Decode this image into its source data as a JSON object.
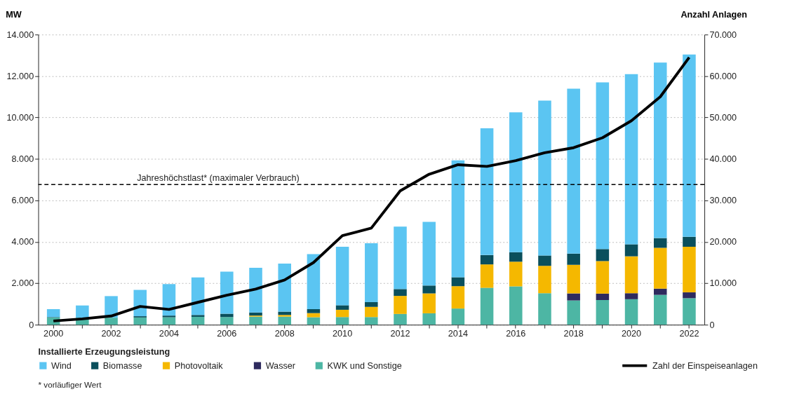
{
  "chart_data": {
    "type": "bar",
    "stacked": true,
    "categories": [
      "2000",
      null,
      "2002",
      null,
      "2004",
      null,
      "2006",
      null,
      "2008",
      null,
      "2010",
      null,
      "2012",
      null,
      "2014",
      null,
      "2016",
      null,
      "2018",
      null,
      "2020",
      null,
      "2022"
    ],
    "ylabel": "MW",
    "y2label": "Anzahl Anlagen",
    "legend_title": "Installierte Erzeugungsleistung",
    "series": [
      {
        "name": "KWK und Sonstige",
        "color": "#4db6a4",
        "values": [
          350,
          340,
          340,
          350,
          360,
          380,
          370,
          390,
          390,
          360,
          370,
          370,
          520,
          550,
          780,
          1780,
          1850,
          1520,
          1170,
          1190,
          1230,
          1440,
          1280
        ]
      },
      {
        "name": "Wasser",
        "color": "#2e2a5e",
        "values": [
          0,
          0,
          0,
          0,
          0,
          0,
          0,
          0,
          0,
          0,
          0,
          0,
          0,
          0,
          0,
          0,
          0,
          0,
          340,
          310,
          290,
          300,
          280
        ]
      },
      {
        "name": "Photovoltaik",
        "color": "#f5b800",
        "values": [
          0,
          0,
          0,
          0,
          0,
          0,
          0,
          50,
          80,
          200,
          350,
          490,
          870,
          960,
          1080,
          1130,
          1190,
          1320,
          1380,
          1570,
          1780,
          1970,
          2200
        ]
      },
      {
        "name": "Biomasse",
        "color": "#0a4f5c",
        "values": [
          20,
          null,
          null,
          60,
          80,
          90,
          160,
          150,
          160,
          190,
          220,
          230,
          330,
          380,
          430,
          450,
          460,
          500,
          540,
          580,
          580,
          470,
          480
        ]
      },
      {
        "name": "Wind",
        "color": "#5bc5f2",
        "values": [
          380,
          590,
          1040,
          1270,
          1520,
          1810,
          2030,
          2160,
          2320,
          2660,
          2820,
          2840,
          3010,
          3070,
          5640,
          6120,
          6750,
          7470,
          7960,
          8040,
          8210,
          8470,
          8800
        ]
      },
      {
        "name": "Zahl der Einspeiseanlagen",
        "type": "line",
        "axis": "y2",
        "color": "#000000",
        "values": [
          900,
          1400,
          2100,
          4400,
          3700,
          5400,
          7100,
          8600,
          10800,
          15000,
          21500,
          23300,
          32300,
          36300,
          38600,
          38200,
          39600,
          41500,
          42700,
          45100,
          49200,
          55000,
          64500
        ]
      }
    ],
    "ylim": [
      0,
      14000
    ],
    "yticks": [
      0,
      {
        "value": 2000,
        "label": "2.000"
      },
      {
        "value": 4000,
        "label": "4.000"
      },
      {
        "value": 6000,
        "label": "6.000"
      },
      {
        "value": 8000,
        "label": "8.000"
      },
      {
        "value": 10000,
        "label": "10.000"
      },
      {
        "value": 12000,
        "label": "12.000"
      },
      {
        "value": 14000,
        "label": "14.000"
      }
    ],
    "y2lim": [
      0,
      70000
    ],
    "y2ticks": [
      0,
      {
        "value": 10000,
        "label": "10.000"
      },
      {
        "value": 20000,
        "label": "20.000"
      },
      {
        "value": 30000,
        "label": "30.000"
      },
      {
        "value": 40000,
        "label": "40.000"
      },
      {
        "value": 50000,
        "label": "50.000"
      },
      {
        "value": 60000,
        "label": "60.000"
      },
      {
        "value": 70000,
        "label": "70.000"
      }
    ],
    "ref_lines": [
      {
        "axis": "y",
        "value": 6760,
        "label": "Jahreshöchstlast* (maximaler Verbrauch)",
        "color": "#000000",
        "line_style": "dashed"
      }
    ],
    "annotations": [
      "* vorläufiger Wert"
    ],
    "grid": "y",
    "legend": "bottom",
    "line_style": "solid"
  }
}
